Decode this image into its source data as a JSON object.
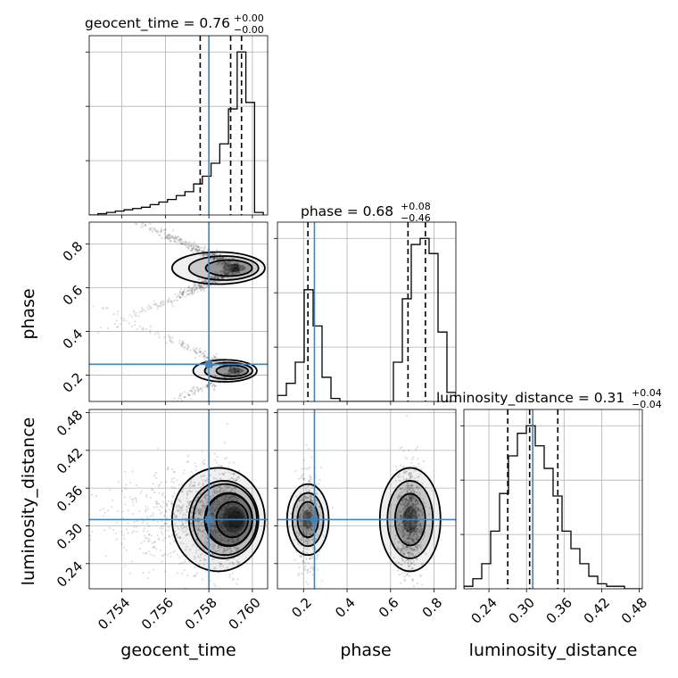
{
  "chart_data": {
    "type": "corner",
    "parameters": [
      "geocent_time",
      "phase",
      "luminosity_distance"
    ],
    "truth": {
      "geocent_time": 0.758,
      "phase": 0.25,
      "luminosity_distance": 0.31
    },
    "colors": {
      "truth": "#4682b4",
      "contour": "#000000",
      "density": "#000000",
      "grid": "#b0b0b0"
    },
    "axes": {
      "geocent_time": {
        "range": [
          0.7525,
          0.7607
        ],
        "ticks": [
          "0.754",
          "0.756",
          "0.758",
          "0.760"
        ]
      },
      "phase": {
        "range": [
          0.08,
          0.9
        ],
        "ticks": [
          "0.2",
          "0.4",
          "0.6",
          "0.8"
        ]
      },
      "luminosity_distance": {
        "range": [
          0.2,
          0.485
        ],
        "ticks": [
          "0.24",
          "0.30",
          "0.36",
          "0.42",
          "0.48"
        ]
      }
    },
    "titles": {
      "geocent_time": {
        "text": "geocent_time = 0.76",
        "sup": "+0.00",
        "sub": "−0.00"
      },
      "phase": {
        "text": "phase = 0.68",
        "sup": "+0.08",
        "sub": "−0.46"
      },
      "luminosity_distance": {
        "text": "luminosity_distance = 0.31",
        "sup": "+0.04",
        "sub": "−0.04"
      }
    },
    "quantiles": {
      "geocent_time": [
        0.7576,
        0.759,
        0.7595
      ],
      "phase": [
        0.22,
        0.68,
        0.76
      ],
      "luminosity_distance": [
        0.27,
        0.305,
        0.35
      ]
    },
    "histograms": {
      "geocent_time": {
        "edges": [
          0.7525,
          0.7529,
          0.7533,
          0.7537,
          0.7541,
          0.7545,
          0.7549,
          0.7553,
          0.7557,
          0.7561,
          0.7565,
          0.7569,
          0.7573,
          0.7577,
          0.7581,
          0.7585,
          0.7589,
          0.7593,
          0.7597,
          0.7601,
          0.7605
        ],
        "counts": [
          0,
          1,
          2,
          3,
          4,
          5,
          6,
          8,
          10,
          12,
          15,
          18,
          24,
          30,
          40,
          55,
          82,
          126,
          87,
          2
        ]
      },
      "phase": {
        "edges": [
          0.08,
          0.121,
          0.162,
          0.203,
          0.244,
          0.285,
          0.326,
          0.367,
          0.408,
          0.449,
          0.49,
          0.531,
          0.572,
          0.613,
          0.654,
          0.695,
          0.736,
          0.777,
          0.818,
          0.859,
          0.9
        ],
        "counts": [
          2,
          6,
          13,
          37,
          25,
          8,
          1,
          0,
          0,
          0,
          0,
          0,
          0,
          13,
          34,
          52,
          54,
          49,
          23,
          3
        ]
      },
      "luminosity_distance": {
        "edges": [
          0.2,
          0.21425,
          0.2285,
          0.24275,
          0.257,
          0.27125,
          0.2855,
          0.29975,
          0.314,
          0.32825,
          0.3425,
          0.35675,
          0.371,
          0.38525,
          0.3995,
          0.41375,
          0.428,
          0.44225,
          0.4565,
          0.47075,
          0.485
        ],
        "counts": [
          1,
          4,
          10,
          23,
          38,
          53,
          62,
          65,
          57,
          48,
          37,
          23,
          16,
          10,
          5,
          2,
          1,
          1,
          0,
          0
        ]
      }
    },
    "modes": [
      {
        "geocent_time": 0.7594,
        "phase": 0.69,
        "luminosity_distance": 0.31,
        "weight": 0.68
      },
      {
        "geocent_time": 0.7594,
        "phase": 0.22,
        "luminosity_distance": 0.31,
        "weight": 0.32
      }
    ]
  }
}
